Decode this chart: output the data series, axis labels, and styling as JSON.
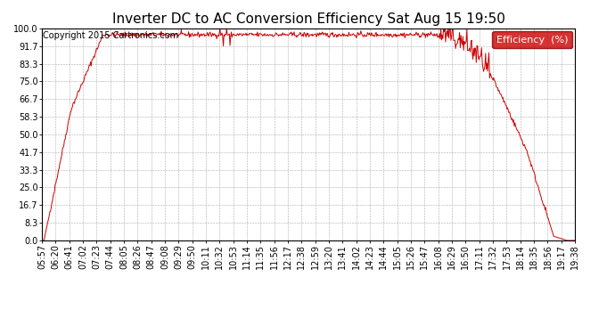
{
  "title": "Inverter DC to AC Conversion Efficiency Sat Aug 15 19:50",
  "copyright": "Copyright 2015 Cartronics.com",
  "legend_label": "Efficiency  (%)",
  "legend_bg": "#cc0000",
  "legend_text_color": "#ffffff",
  "line_color": "#cc0000",
  "background_color": "#ffffff",
  "grid_color": "#999999",
  "yticks": [
    0.0,
    8.3,
    16.7,
    25.0,
    33.3,
    41.7,
    50.0,
    58.3,
    66.7,
    75.0,
    83.3,
    91.7,
    100.0
  ],
  "xtick_labels": [
    "05:57",
    "06:20",
    "06:41",
    "07:02",
    "07:23",
    "07:44",
    "08:05",
    "08:26",
    "08:47",
    "09:08",
    "09:29",
    "09:50",
    "10:11",
    "10:32",
    "10:53",
    "11:14",
    "11:35",
    "11:56",
    "12:17",
    "12:38",
    "12:59",
    "13:20",
    "13:41",
    "14:02",
    "14:23",
    "14:44",
    "15:05",
    "15:26",
    "15:47",
    "16:08",
    "16:29",
    "16:50",
    "17:11",
    "17:32",
    "17:53",
    "18:14",
    "18:35",
    "18:56",
    "19:17",
    "19:38"
  ],
  "ylim": [
    0.0,
    100.0
  ],
  "title_fontsize": 11,
  "tick_fontsize": 7,
  "copyright_fontsize": 7,
  "legend_fontsize": 8
}
